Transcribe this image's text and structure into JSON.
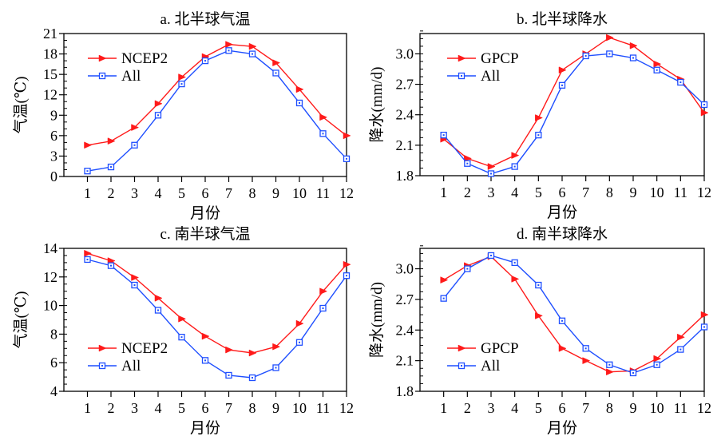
{
  "figure": {
    "colors": {
      "model": "#ff1a1a",
      "all": "#1f4fff",
      "axis": "#000000"
    }
  },
  "chart_data": [
    {
      "id": "a",
      "type": "line",
      "title": "a. 北半球气温",
      "xlabel": "月份",
      "ylabel": "气温(℃)",
      "x": [
        1,
        2,
        3,
        4,
        5,
        6,
        7,
        8,
        9,
        10,
        11,
        12
      ],
      "xlim": [
        0,
        12
      ],
      "ylim": [
        0,
        21
      ],
      "yticks": [
        0,
        3,
        6,
        9,
        12,
        15,
        18,
        21
      ],
      "ytick_labels": [
        "0",
        "3",
        "6",
        "9",
        "12",
        "15",
        "18",
        "21"
      ],
      "yminor_step": 1,
      "legend_position": "top-left",
      "series": [
        {
          "name": "NCEP2",
          "marker": "triangle-right",
          "color": "#ff1a1a",
          "values": [
            4.6,
            5.2,
            7.2,
            10.7,
            14.6,
            17.6,
            19.4,
            19.1,
            16.7,
            12.8,
            8.7,
            6.0
          ]
        },
        {
          "name": "All",
          "marker": "square",
          "color": "#1f4fff",
          "values": [
            0.8,
            1.4,
            4.6,
            9.0,
            13.6,
            17.0,
            18.5,
            18.0,
            15.2,
            10.8,
            6.3,
            2.6
          ]
        }
      ]
    },
    {
      "id": "b",
      "type": "line",
      "title": "b. 北半球降水",
      "xlabel": "月份",
      "ylabel": "降水(mm/d)",
      "x": [
        1,
        2,
        3,
        4,
        5,
        6,
        7,
        8,
        9,
        10,
        11,
        12
      ],
      "xlim": [
        0,
        12
      ],
      "ylim": [
        1.8,
        3.2
      ],
      "yticks": [
        1.8,
        2.1,
        2.4,
        2.7,
        3.0
      ],
      "ytick_labels": [
        "1.8",
        "2.1",
        "2.4",
        "2.7",
        "3.0"
      ],
      "yminor_step": 0.075,
      "legend_position": "top-left",
      "series": [
        {
          "name": "GPCP",
          "marker": "triangle-right",
          "color": "#ff1a1a",
          "values": [
            2.16,
            1.97,
            1.89,
            2.0,
            2.37,
            2.84,
            3.0,
            3.16,
            3.08,
            2.9,
            2.75,
            2.42
          ]
        },
        {
          "name": "All",
          "marker": "square",
          "color": "#1f4fff",
          "values": [
            2.2,
            1.92,
            1.82,
            1.89,
            2.2,
            2.69,
            2.98,
            3.0,
            2.96,
            2.84,
            2.72,
            2.5
          ]
        }
      ]
    },
    {
      "id": "c",
      "type": "line",
      "title": "c. 南半球气温",
      "xlabel": "月份",
      "ylabel": "气温(℃)",
      "x": [
        1,
        2,
        3,
        4,
        5,
        6,
        7,
        8,
        9,
        10,
        11,
        12
      ],
      "xlim": [
        0,
        12
      ],
      "ylim": [
        4,
        14
      ],
      "yticks": [
        4,
        6,
        8,
        10,
        12,
        14
      ],
      "ytick_labels": [
        "4",
        "6",
        "8",
        "10",
        "12",
        "14"
      ],
      "yminor_step": 0.5,
      "legend_position": "bottom-left",
      "series": [
        {
          "name": "NCEP2",
          "marker": "triangle-right",
          "color": "#ff1a1a",
          "values": [
            13.65,
            13.13,
            11.96,
            10.52,
            9.07,
            7.85,
            6.9,
            6.68,
            7.12,
            8.74,
            11.0,
            12.87
          ]
        },
        {
          "name": "All",
          "marker": "square",
          "color": "#1f4fff",
          "values": [
            13.22,
            12.79,
            11.43,
            9.67,
            7.79,
            6.16,
            5.12,
            4.95,
            5.65,
            7.42,
            9.81,
            12.09
          ]
        }
      ]
    },
    {
      "id": "d",
      "type": "line",
      "title": "d. 南半球降水",
      "xlabel": "月份",
      "ylabel": "降水(mm/d)",
      "x": [
        1,
        2,
        3,
        4,
        5,
        6,
        7,
        8,
        9,
        10,
        11,
        12
      ],
      "xlim": [
        0,
        12
      ],
      "ylim": [
        1.8,
        3.2
      ],
      "yticks": [
        1.8,
        2.1,
        2.4,
        2.7,
        3.0
      ],
      "ytick_labels": [
        "1.8",
        "2.1",
        "2.4",
        "2.7",
        "3.0"
      ],
      "yminor_step": 0.075,
      "legend_position": "bottom-left",
      "series": [
        {
          "name": "GPCP",
          "marker": "triangle-right",
          "color": "#ff1a1a",
          "values": [
            2.89,
            3.03,
            3.12,
            2.9,
            2.54,
            2.22,
            2.1,
            1.99,
            2.0,
            2.12,
            2.33,
            2.55
          ]
        },
        {
          "name": "All",
          "marker": "square",
          "color": "#1f4fff",
          "values": [
            2.71,
            3.0,
            3.13,
            3.06,
            2.84,
            2.49,
            2.22,
            2.06,
            1.98,
            2.06,
            2.21,
            2.43
          ]
        }
      ]
    }
  ]
}
